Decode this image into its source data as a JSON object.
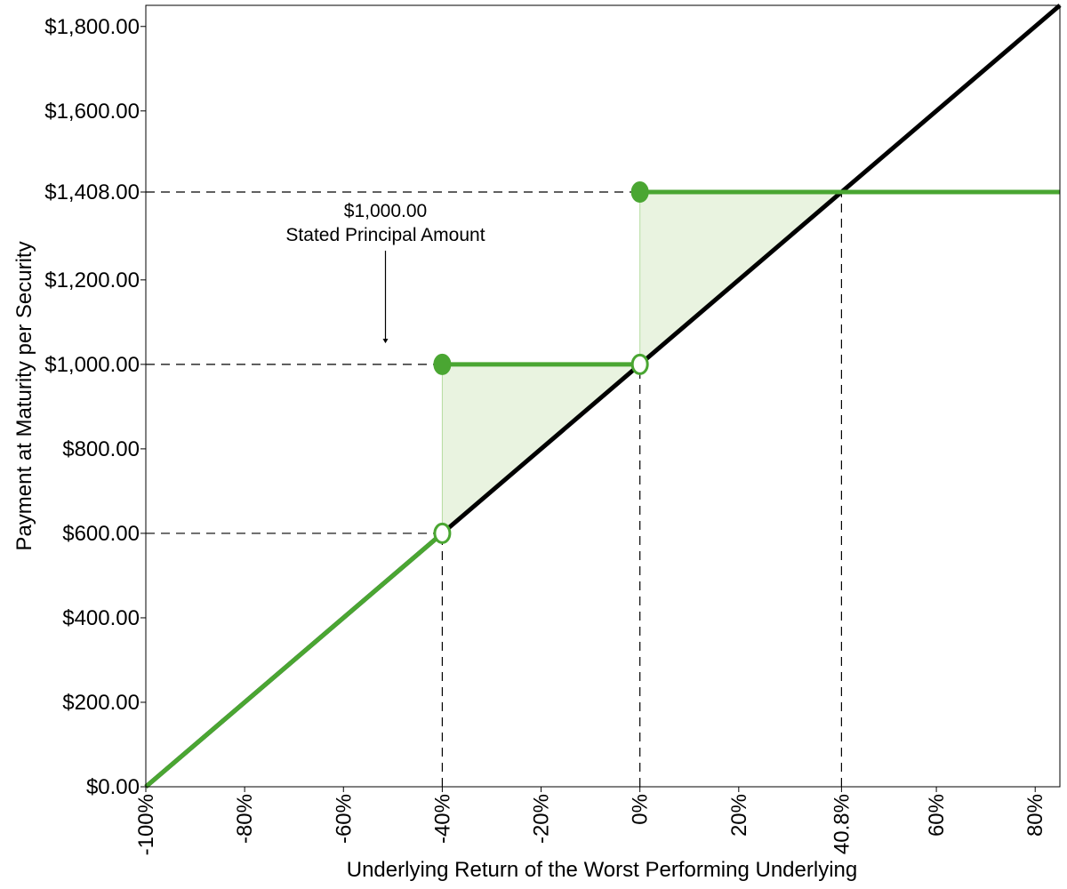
{
  "chart_data": {
    "type": "line",
    "xlabel": "Underlying Return of the Worst Performing Underlying",
    "ylabel": "Payment at Maturity per Security",
    "xlim": [
      -100,
      85
    ],
    "ylim": [
      0,
      1850
    ],
    "x_ticks": [
      {
        "value": -100,
        "label": "-100%"
      },
      {
        "value": -80,
        "label": "-80%"
      },
      {
        "value": -60,
        "label": "-60%"
      },
      {
        "value": -40,
        "label": "-40%"
      },
      {
        "value": -20,
        "label": "-20%"
      },
      {
        "value": 0,
        "label": "0%"
      },
      {
        "value": 20,
        "label": "20%"
      },
      {
        "value": 40.8,
        "label": "40.8%"
      },
      {
        "value": 60,
        "label": "60%"
      },
      {
        "value": 80,
        "label": "80%"
      }
    ],
    "y_ticks": [
      {
        "value": 0,
        "label": "$0.00"
      },
      {
        "value": 200,
        "label": "$200.00"
      },
      {
        "value": 400,
        "label": "$400.00"
      },
      {
        "value": 600,
        "label": "$600.00"
      },
      {
        "value": 800,
        "label": "$800.00"
      },
      {
        "value": 1000,
        "label": "$1,000.00"
      },
      {
        "value": 1200,
        "label": "$1,200.00"
      },
      {
        "value": 1408,
        "label": "$1,408.00"
      },
      {
        "value": 1600,
        "label": "$1,600.00"
      },
      {
        "value": 1800,
        "label": "$1,800.00"
      }
    ],
    "series": [
      {
        "color": "#000000",
        "points": [
          [
            -100,
            0
          ],
          [
            85,
            1850
          ]
        ]
      },
      {
        "color": "#4aa632",
        "segments": [
          [
            [
              -100,
              0
            ],
            [
              -40,
              600
            ]
          ],
          [
            [
              -40,
              1000
            ],
            [
              0,
              1000
            ]
          ],
          [
            [
              0,
              1408
            ],
            [
              85,
              1408
            ]
          ]
        ]
      }
    ],
    "markers": [
      {
        "x": -40,
        "y": 600,
        "filled": false
      },
      {
        "x": -40,
        "y": 1000,
        "filled": true
      },
      {
        "x": 0,
        "y": 1000,
        "filled": false
      },
      {
        "x": 0,
        "y": 1408,
        "filled": true
      }
    ],
    "shaded_regions": [
      {
        "color": "#e9f3e0",
        "points": [
          [
            -40,
            600
          ],
          [
            -40,
            1000
          ],
          [
            0,
            1000
          ]
        ]
      },
      {
        "color": "#e9f3e0",
        "points": [
          [
            0,
            1000
          ],
          [
            0,
            1408
          ],
          [
            40.8,
            1408
          ]
        ]
      }
    ],
    "reference_lines": {
      "horizontal": [
        {
          "y": 1408,
          "x_to": 0
        },
        {
          "y": 1000,
          "x_to": -40
        },
        {
          "y": 600,
          "x_to": -40
        }
      ],
      "vertical": [
        {
          "x": -40,
          "y_to": 600
        },
        {
          "x": 0,
          "y_to": 1000
        },
        {
          "x": 40.8,
          "y_to": 1408
        }
      ]
    },
    "annotation": {
      "line1": "$1,000.00",
      "line2": "Stated Principal Amount",
      "arrow_x": -51.5,
      "arrow_to_y": 1050
    },
    "grid": false
  }
}
